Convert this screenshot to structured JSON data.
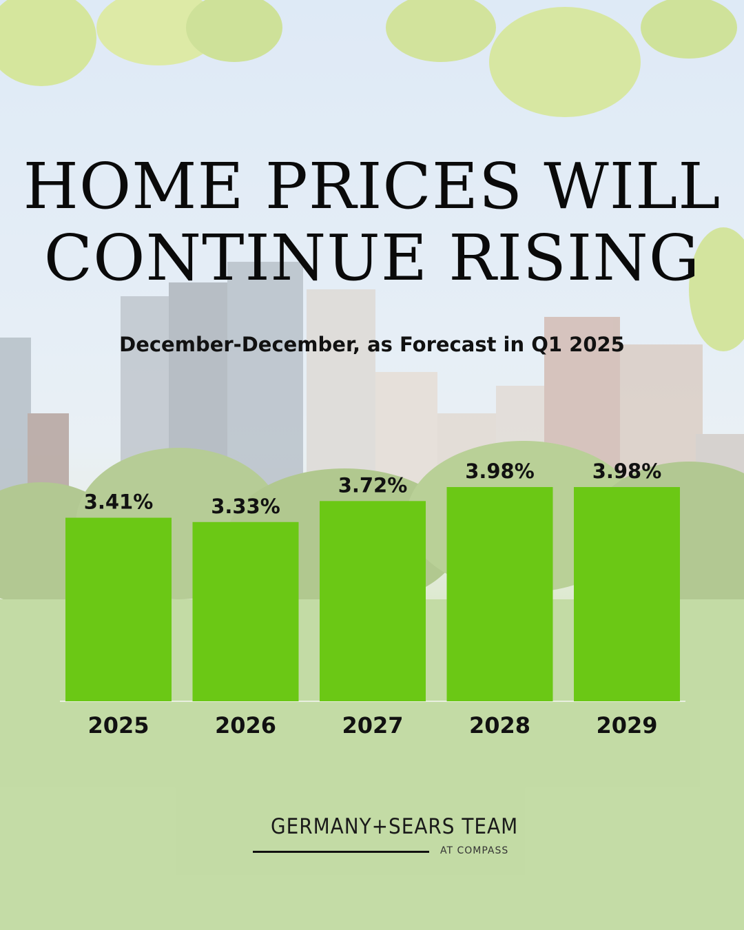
{
  "headline": {
    "line1": "HOME PRICES WILL",
    "line2": "CONTINUE RISING"
  },
  "colors": {
    "bar": "#6bc815",
    "text": "#111111"
  },
  "chart_data": {
    "type": "bar",
    "title": "HOME PRICES WILL CONTINUE RISING",
    "subtitle": "December-December, as Forecast in Q1 2025",
    "categories": [
      "2025",
      "2026",
      "2027",
      "2028",
      "2029"
    ],
    "values": [
      3.41,
      3.33,
      3.72,
      3.98,
      3.98
    ],
    "value_labels": [
      "3.41%",
      "3.33%",
      "3.72%",
      "3.98%",
      "3.98%"
    ],
    "xlabel": "",
    "ylabel": "",
    "grid": false,
    "legend": "none"
  },
  "brand": {
    "name": "GERMANY+SEARS TEAM",
    "sub": "AT COMPASS"
  }
}
